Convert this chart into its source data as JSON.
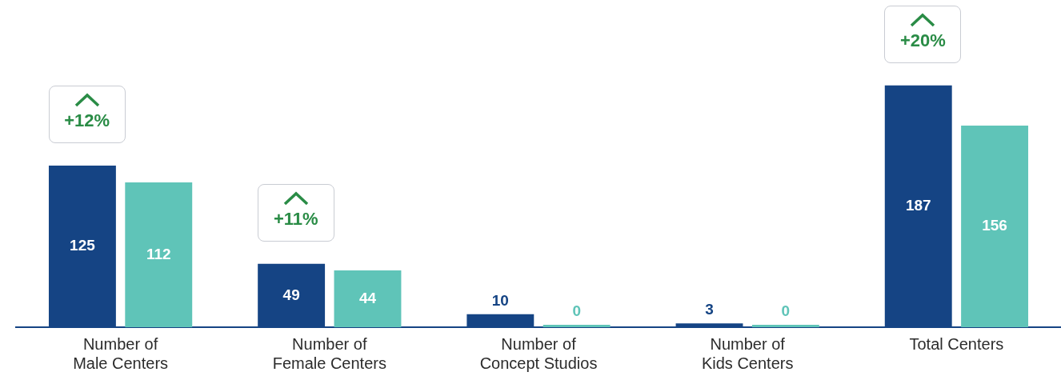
{
  "chart_data": {
    "type": "bar",
    "categories": [
      "Number of\nMale Centers",
      "Number of\nFemale Centers",
      "Number of\nConcept Studios",
      "Number of\nKids Centers",
      "Total Centers"
    ],
    "series": [
      {
        "color": "#154484",
        "values": [
          125,
          49,
          10,
          3,
          187
        ]
      },
      {
        "color": "#5fc4b8",
        "values": [
          112,
          44,
          0,
          0,
          156
        ]
      }
    ],
    "ylim": [
      0,
      250
    ],
    "tick_labels": "x",
    "grid": false,
    "legend": false,
    "data_labels": true,
    "annotations": [
      "+12%",
      "+11%",
      "+20%"
    ]
  }
}
